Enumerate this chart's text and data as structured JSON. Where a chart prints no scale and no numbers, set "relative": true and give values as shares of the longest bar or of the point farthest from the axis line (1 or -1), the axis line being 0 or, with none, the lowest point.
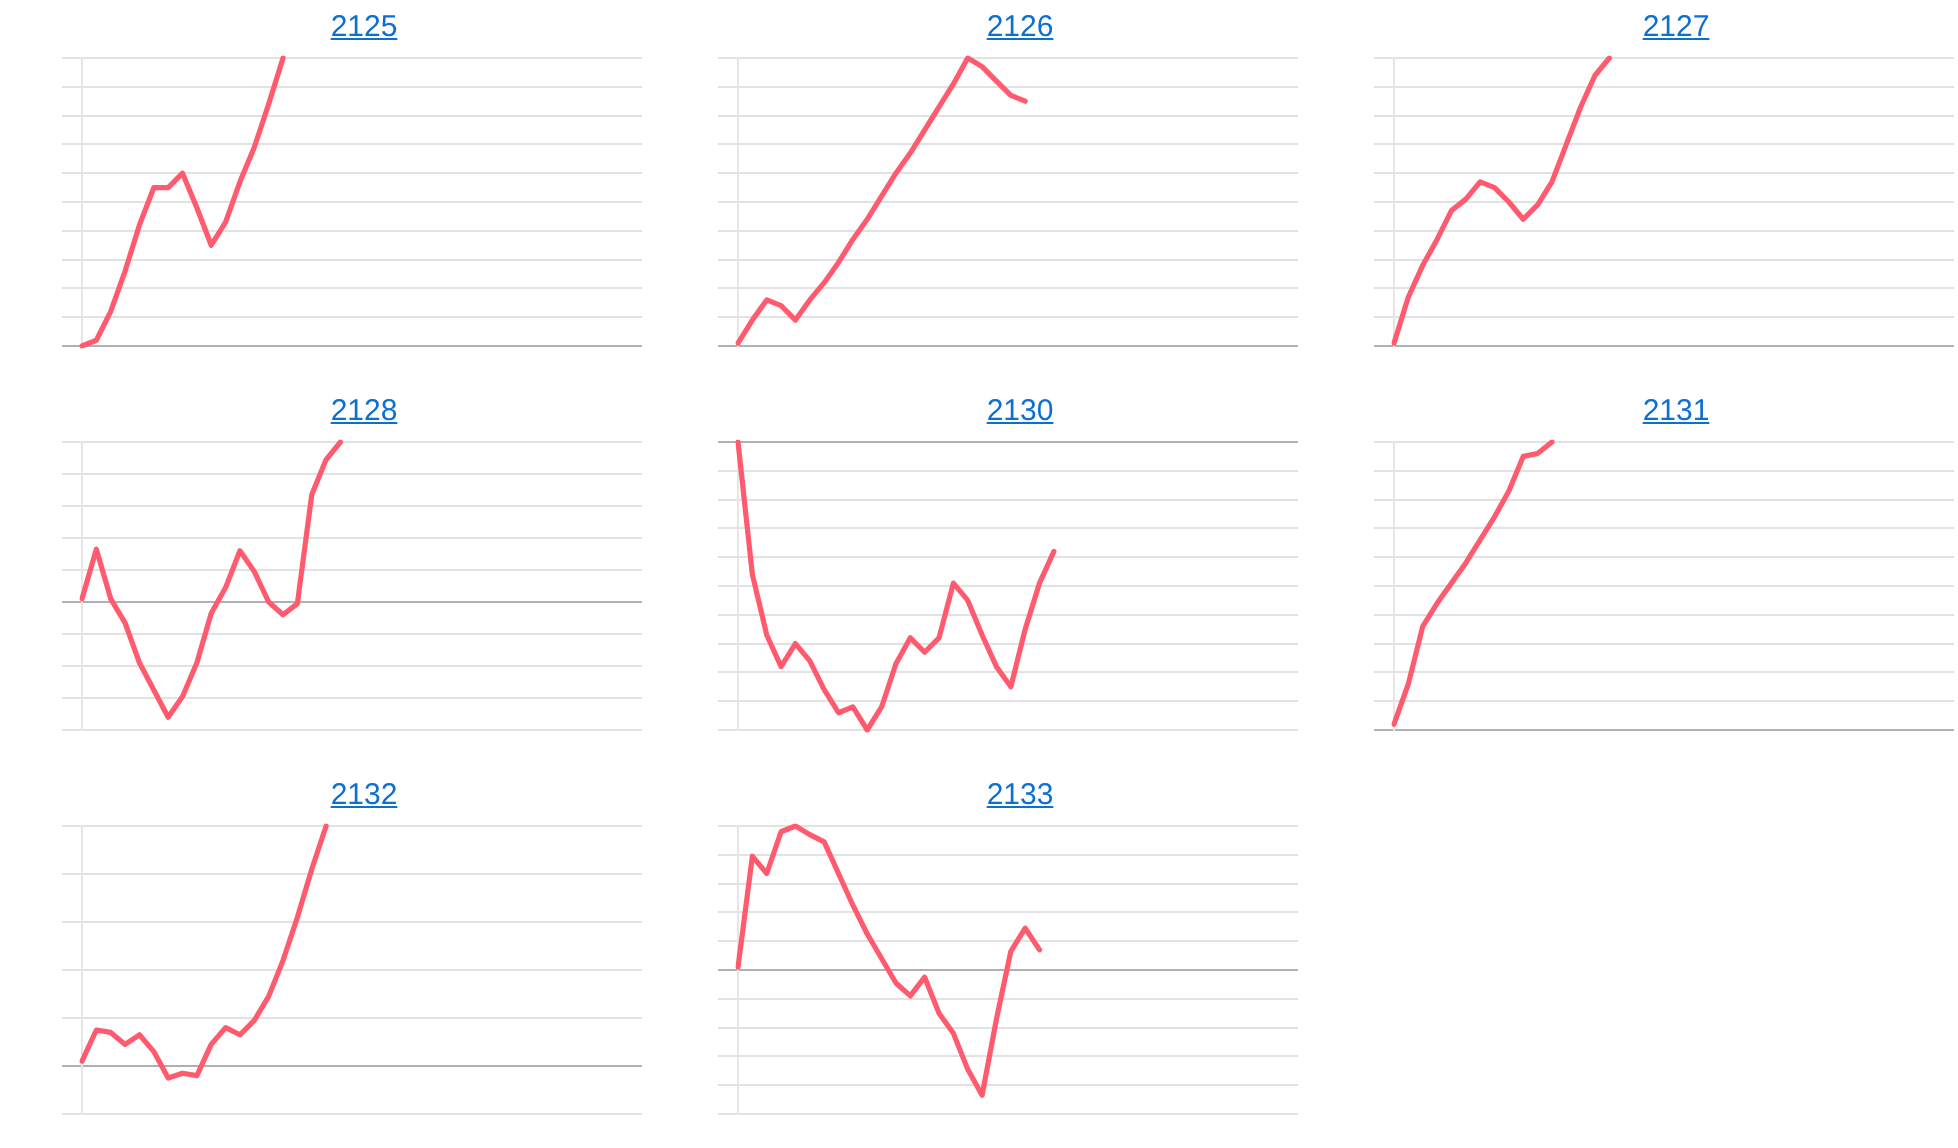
{
  "chart_data": [
    {
      "type": "line",
      "title": "2125",
      "relative": true,
      "grid": "y",
      "color": "#ff5a6e",
      "categories": [
        null,
        null,
        null,
        null,
        null,
        null,
        null,
        null,
        null,
        null,
        null,
        null,
        null,
        null,
        null,
        null,
        null,
        null,
        null,
        null,
        null,
        null,
        null,
        null,
        null,
        null,
        null,
        null,
        null,
        null,
        null,
        null,
        null,
        null,
        null,
        null,
        null,
        null,
        null,
        null
      ],
      "values": [
        0,
        0.02,
        0.12,
        0.26,
        0.42,
        0.55,
        0.55,
        0.6,
        0.48,
        0.35,
        0.43,
        0.57,
        0.69,
        0.84,
        1,
        null,
        null,
        null,
        null,
        null,
        null,
        null,
        null,
        null,
        null,
        null,
        null,
        null,
        null,
        null,
        null,
        null,
        null,
        null,
        null,
        null,
        null,
        null,
        null,
        null
      ]
    },
    {
      "type": "line",
      "title": "2126",
      "relative": true,
      "grid": "y",
      "color": "#ff5a6e",
      "categories": [
        null,
        null,
        null,
        null,
        null,
        null,
        null,
        null,
        null,
        null,
        null,
        null,
        null,
        null,
        null,
        null,
        null,
        null,
        null,
        null,
        null,
        null,
        null,
        null,
        null,
        null,
        null,
        null,
        null,
        null,
        null,
        null,
        null,
        null,
        null,
        null,
        null,
        null,
        null,
        null
      ],
      "values": [
        0.01,
        0.09,
        0.16,
        0.14,
        0.09,
        0.16,
        0.22,
        0.29,
        0.37,
        0.44,
        0.52,
        0.6,
        0.67,
        0.75,
        0.83,
        0.91,
        1,
        0.97,
        0.92,
        0.87,
        0.85,
        null,
        null,
        null,
        null,
        null,
        null,
        null,
        null,
        null,
        null,
        null,
        null,
        null,
        null,
        null,
        null,
        null,
        null,
        null
      ]
    },
    {
      "type": "line",
      "title": "2127",
      "relative": true,
      "grid": "y",
      "color": "#ff5a6e",
      "categories": [
        null,
        null,
        null,
        null,
        null,
        null,
        null,
        null,
        null,
        null,
        null,
        null,
        null,
        null,
        null,
        null,
        null,
        null,
        null,
        null,
        null,
        null,
        null,
        null,
        null,
        null,
        null,
        null,
        null,
        null,
        null,
        null,
        null,
        null,
        null,
        null,
        null,
        null,
        null,
        null
      ],
      "values": [
        0.01,
        0.17,
        0.28,
        0.37,
        0.47,
        0.51,
        0.57,
        0.55,
        0.5,
        0.44,
        0.49,
        0.57,
        0.7,
        0.83,
        0.94,
        1,
        null,
        null,
        null,
        null,
        null,
        null,
        null,
        null,
        null,
        null,
        null,
        null,
        null,
        null,
        null,
        null,
        null,
        null,
        null,
        null,
        null,
        null,
        null,
        null
      ]
    },
    {
      "type": "line",
      "title": "2128",
      "relative": true,
      "grid": "y",
      "color": "#ff5a6e",
      "categories": [
        null,
        null,
        null,
        null,
        null,
        null,
        null,
        null,
        null,
        null,
        null,
        null,
        null,
        null,
        null,
        null,
        null,
        null,
        null,
        null,
        null,
        null,
        null,
        null,
        null,
        null,
        null,
        null,
        null,
        null,
        null,
        null,
        null,
        null,
        null,
        null,
        null,
        null,
        null,
        null
      ],
      "values": [
        0.02,
        0.33,
        0.02,
        -0.13,
        -0.38,
        -0.55,
        -0.72,
        -0.59,
        -0.38,
        -0.07,
        0.09,
        0.32,
        0.19,
        0,
        -0.08,
        -0.01,
        0.67,
        0.89,
        1,
        null,
        null,
        null,
        null,
        null,
        null,
        null,
        null,
        null,
        null,
        null,
        null,
        null,
        null,
        null,
        null,
        null,
        null,
        null,
        null,
        null
      ]
    },
    {
      "type": "line",
      "title": "2130",
      "relative": true,
      "grid": "y",
      "color": "#ff5a6e",
      "categories": [
        null,
        null,
        null,
        null,
        null,
        null,
        null,
        null,
        null,
        null,
        null,
        null,
        null,
        null,
        null,
        null,
        null,
        null,
        null,
        null,
        null,
        null,
        null,
        null,
        null,
        null,
        null,
        null,
        null,
        null,
        null,
        null,
        null,
        null,
        null,
        null,
        null,
        null,
        null,
        null
      ],
      "values": [
        0,
        -0.46,
        -0.67,
        -0.78,
        -0.7,
        -0.76,
        -0.86,
        -0.94,
        -0.92,
        -1,
        -0.92,
        -0.77,
        -0.68,
        -0.73,
        -0.68,
        -0.49,
        -0.55,
        -0.67,
        -0.78,
        -0.85,
        -0.65,
        -0.49,
        -0.38,
        null,
        null,
        null,
        null,
        null,
        null,
        null,
        null,
        null,
        null,
        null,
        null,
        null,
        null,
        null,
        null,
        null
      ]
    },
    {
      "type": "line",
      "title": "2131",
      "relative": true,
      "grid": "y",
      "color": "#ff5a6e",
      "categories": [
        null,
        null,
        null,
        null,
        null,
        null,
        null,
        null,
        null,
        null,
        null,
        null,
        null,
        null,
        null,
        null,
        null,
        null,
        null,
        null,
        null,
        null,
        null,
        null,
        null,
        null,
        null,
        null,
        null,
        null,
        null,
        null,
        null,
        null,
        null,
        null,
        null,
        null,
        null,
        null
      ],
      "values": [
        0.02,
        0.16,
        0.36,
        0.44,
        0.51,
        0.58,
        0.66,
        0.74,
        0.83,
        0.95,
        0.96,
        1,
        null,
        null,
        null,
        null,
        null,
        null,
        null,
        null,
        null,
        null,
        null,
        null,
        null,
        null,
        null,
        null,
        null,
        null,
        null,
        null,
        null,
        null,
        null,
        null,
        null,
        null,
        null,
        null
      ]
    },
    {
      "type": "line",
      "title": "2132",
      "relative": true,
      "grid": "y",
      "color": "#ff5a6e",
      "categories": [
        null,
        null,
        null,
        null,
        null,
        null,
        null,
        null,
        null,
        null,
        null,
        null,
        null,
        null,
        null,
        null,
        null,
        null,
        null,
        null,
        null,
        null,
        null,
        null,
        null,
        null,
        null,
        null,
        null,
        null,
        null,
        null,
        null,
        null,
        null,
        null,
        null,
        null,
        null,
        null
      ],
      "values": [
        0.02,
        0.15,
        0.14,
        0.09,
        0.13,
        0.06,
        -0.05,
        -0.03,
        -0.04,
        0.09,
        0.16,
        0.13,
        0.19,
        0.29,
        0.44,
        0.62,
        0.82,
        1,
        null,
        null,
        null,
        null,
        null,
        null,
        null,
        null,
        null,
        null,
        null,
        null,
        null,
        null,
        null,
        null,
        null,
        null,
        null,
        null,
        null,
        null
      ]
    },
    {
      "type": "line",
      "title": "2133",
      "relative": true,
      "grid": "y",
      "color": "#ff5a6e",
      "categories": [
        null,
        null,
        null,
        null,
        null,
        null,
        null,
        null,
        null,
        null,
        null,
        null,
        null,
        null,
        null,
        null,
        null,
        null,
        null,
        null,
        null,
        null,
        null,
        null,
        null,
        null,
        null,
        null,
        null,
        null,
        null,
        null,
        null,
        null,
        null,
        null,
        null,
        null,
        null,
        null
      ],
      "values": [
        0.02,
        0.79,
        0.67,
        0.96,
        1,
        0.94,
        0.89,
        0.67,
        0.45,
        0.25,
        0.08,
        -0.09,
        -0.18,
        -0.05,
        -0.3,
        -0.44,
        -0.69,
        -0.87,
        -0.34,
        0.13,
        0.29,
        0.14,
        null,
        null,
        null,
        null,
        null,
        null,
        null,
        null,
        null,
        null,
        null,
        null,
        null,
        null,
        null,
        null,
        null,
        null
      ]
    }
  ]
}
